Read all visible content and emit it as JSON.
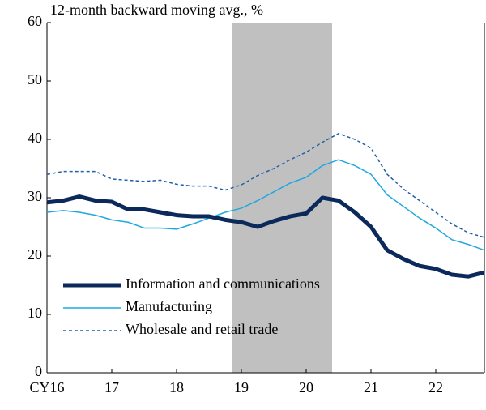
{
  "chart_data": {
    "type": "line",
    "ylabel": "12-month backward moving avg., %",
    "x": [
      16,
      16.25,
      16.5,
      16.75,
      17,
      17.25,
      17.5,
      17.75,
      18,
      18.25,
      18.5,
      18.75,
      19,
      19.25,
      19.5,
      19.75,
      20,
      20.25,
      20.5,
      20.75,
      21,
      21.25,
      21.5,
      21.75,
      22,
      22.25,
      22.5,
      22.75
    ],
    "series": [
      {
        "name": "Information and communications",
        "color": "#0b2a5b",
        "style": "solid",
        "width": 5,
        "values": [
          29.2,
          29.5,
          30.2,
          29.5,
          29.3,
          28,
          28,
          27.5,
          27,
          26.8,
          26.8,
          26.2,
          25.8,
          25,
          26,
          26.8,
          27.3,
          30,
          29.5,
          27.5,
          25,
          21,
          19.5,
          18.3,
          17.8,
          16.8,
          16.5,
          17.2
        ]
      },
      {
        "name": "Manufacturing",
        "color": "#1fa8e0",
        "style": "solid",
        "width": 1.5,
        "values": [
          27.5,
          27.8,
          27.5,
          27,
          26.2,
          25.8,
          24.8,
          24.8,
          24.6,
          25.5,
          26.5,
          27.5,
          28.2,
          29.5,
          31,
          32.5,
          33.5,
          35.5,
          36.5,
          35.5,
          34,
          30.5,
          28.5,
          26.5,
          24.8,
          22.8,
          22,
          21
        ]
      },
      {
        "name": "Wholesale and retail trade",
        "color": "#1f5fa8",
        "style": "dashed",
        "width": 1.5,
        "values": [
          34,
          34.5,
          34.5,
          34.5,
          33.2,
          33,
          32.8,
          33,
          32.3,
          32,
          32,
          31.3,
          32.2,
          33.8,
          35,
          36.5,
          37.8,
          39.5,
          41,
          40,
          38.5,
          34,
          31.5,
          29.5,
          27.5,
          25.5,
          24,
          23.2
        ]
      }
    ],
    "xlim": [
      16,
      22.75
    ],
    "xticks": [
      {
        "value": 16,
        "label": "CY16"
      },
      17,
      18,
      19,
      20,
      21,
      22
    ],
    "ylim": [
      0,
      60
    ],
    "yticks": [
      0,
      10,
      20,
      30,
      40,
      50,
      60
    ],
    "shaded_region": [
      18.85,
      20.4
    ],
    "shade_color": "#c0c0c0",
    "legend": "lower left"
  }
}
